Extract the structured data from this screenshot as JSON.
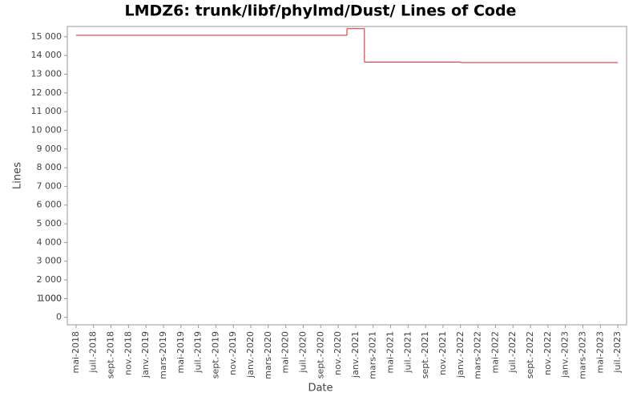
{
  "chart_data": {
    "type": "line",
    "title": "LMDZ6: trunk/libf/phylmd/Dust/ Lines of Code",
    "x_label": "Date",
    "y_label": "Lines",
    "drawstyle": "steps-post",
    "x": [
      "2018-05",
      "2020-12",
      "2021-02",
      "2022-01",
      "2023-07"
    ],
    "series": [
      {
        "name": "Lines",
        "color": "#dd2222",
        "values": [
          15080,
          15430,
          13650,
          13620,
          13620
        ]
      }
    ],
    "xlim": [
      "2018-04",
      "2023-08"
    ],
    "xticks": [
      {
        "value": "2018-05",
        "label": "mai-2018"
      },
      {
        "value": "2018-07",
        "label": "juil.-2018"
      },
      {
        "value": "2018-09",
        "label": "sept.-2018"
      },
      {
        "value": "2018-11",
        "label": "nov.-2018"
      },
      {
        "value": "2019-01",
        "label": "janv.-2019"
      },
      {
        "value": "2019-03",
        "label": "mars-2019"
      },
      {
        "value": "2019-05",
        "label": "mai-2019"
      },
      {
        "value": "2019-07",
        "label": "juil.-2019"
      },
      {
        "value": "2019-09",
        "label": "sept.-2019"
      },
      {
        "value": "2019-11",
        "label": "nov.-2019"
      },
      {
        "value": "2020-01",
        "label": "janv.-2020"
      },
      {
        "value": "2020-03",
        "label": "mars-2020"
      },
      {
        "value": "2020-05",
        "label": "mai-2020"
      },
      {
        "value": "2020-07",
        "label": "juil.-2020"
      },
      {
        "value": "2020-09",
        "label": "sept.-2020"
      },
      {
        "value": "2020-11",
        "label": "nov.-2020"
      },
      {
        "value": "2021-01",
        "label": "janv.-2021"
      },
      {
        "value": "2021-03",
        "label": "mars-2021"
      },
      {
        "value": "2021-05",
        "label": "mai-2021"
      },
      {
        "value": "2021-07",
        "label": "juil.-2021"
      },
      {
        "value": "2021-09",
        "label": "sept.-2021"
      },
      {
        "value": "2021-11",
        "label": "nov.-2021"
      },
      {
        "value": "2022-01",
        "label": "janv.-2022"
      },
      {
        "value": "2022-03",
        "label": "mars-2022"
      },
      {
        "value": "2022-05",
        "label": "mai-2022"
      },
      {
        "value": "2022-07",
        "label": "juil.-2022"
      },
      {
        "value": "2022-09",
        "label": "sept.-2022"
      },
      {
        "value": "2022-11",
        "label": "nov.-2022"
      },
      {
        "value": "2023-01",
        "label": "janv.-2023"
      },
      {
        "value": "2023-03",
        "label": "mars-2023"
      },
      {
        "value": "2023-05",
        "label": "mai-2023"
      },
      {
        "value": "2023-07",
        "label": "juil.-2023"
      }
    ],
    "ylim": [
      -400,
      15550
    ],
    "yticks": [
      0,
      1000,
      {
        "value": 1000,
        "label": "1 000"
      },
      {
        "value": 2000,
        "label": "2 000"
      },
      {
        "value": 3000,
        "label": "3 000"
      },
      {
        "value": 4000,
        "label": "4 000"
      },
      {
        "value": 5000,
        "label": "5 000"
      },
      {
        "value": 6000,
        "label": "6 000"
      },
      {
        "value": 7000,
        "label": "7 000"
      },
      {
        "value": 8000,
        "label": "8 000"
      },
      {
        "value": 9000,
        "label": "9 000"
      },
      {
        "value": 10000,
        "label": "10 000"
      },
      {
        "value": 11000,
        "label": "11 000"
      },
      {
        "value": 12000,
        "label": "12 000"
      },
      {
        "value": 13000,
        "label": "13 000"
      },
      {
        "value": 14000,
        "label": "14 000"
      },
      {
        "value": 15000,
        "label": "15 000"
      }
    ],
    "grid": false
  }
}
